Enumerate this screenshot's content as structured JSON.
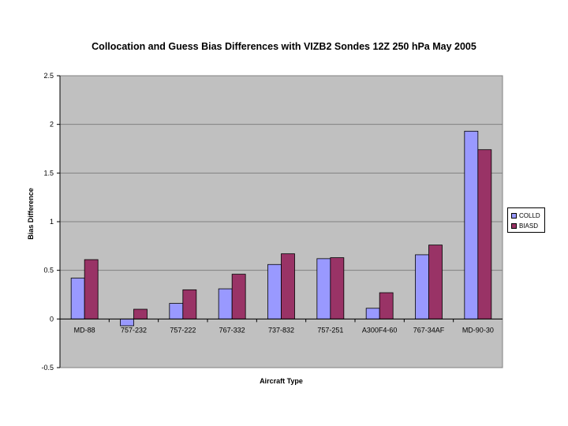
{
  "chart_data": {
    "type": "bar",
    "title": "Collocation and Guess Bias Differences with VIZB2 Sondes 12Z 250 hPa May 2005",
    "xlabel": "Aircraft Type",
    "ylabel": "Bias Difference",
    "categories": [
      "MD-88",
      "757-232",
      "757-222",
      "767-332",
      "737-832",
      "757-251",
      "A300F4-60",
      "767-34AF",
      "MD-90-30"
    ],
    "series": [
      {
        "name": "COLLD",
        "color": "#9999ff",
        "values": [
          0.42,
          -0.07,
          0.16,
          0.31,
          0.56,
          0.62,
          0.11,
          0.66,
          1.93
        ]
      },
      {
        "name": "BIASD",
        "color": "#993366",
        "values": [
          0.61,
          0.1,
          0.3,
          0.46,
          0.67,
          0.63,
          0.27,
          0.76,
          1.74
        ]
      }
    ],
    "ylim": [
      -0.5,
      2.5
    ],
    "yticks": [
      "-0.5",
      "0",
      "0.5",
      "1",
      "1.5",
      "2",
      "2.5"
    ],
    "plot_background": "#c0c0c0",
    "grid": true,
    "gridline_color": "#808080",
    "legend_position": "right"
  }
}
